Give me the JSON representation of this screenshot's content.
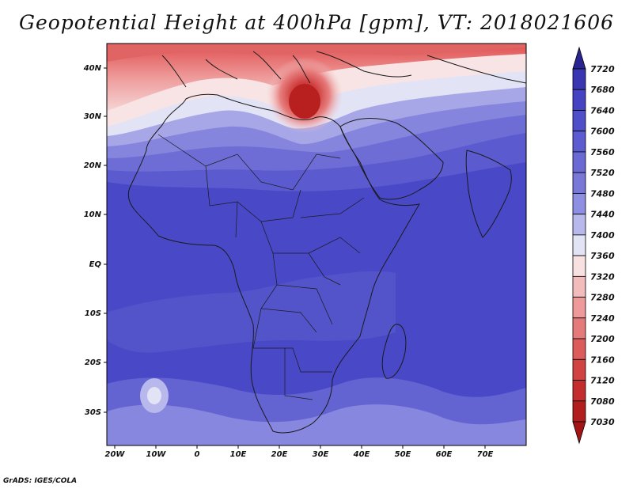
{
  "title": "Geopotential Height at 400hPa [gpm], VT: 2018021606",
  "credit": "GrADS: IGES/COLA",
  "map": {
    "lat_labels": [
      "40N",
      "30N",
      "20N",
      "10N",
      "EQ",
      "10S",
      "20S",
      "30S"
    ],
    "lon_labels": [
      "20W",
      "10W",
      "0",
      "10E",
      "20E",
      "30E",
      "40E",
      "50E",
      "60E",
      "70E"
    ]
  },
  "colorbar": {
    "labels": [
      "7720",
      "7680",
      "7640",
      "7600",
      "7560",
      "7520",
      "7480",
      "7440",
      "7400",
      "7360",
      "7320",
      "7280",
      "7240",
      "7200",
      "7160",
      "7120",
      "7080",
      "7030"
    ],
    "colors": [
      "#3a36b2",
      "#4543c2",
      "#504fca",
      "#5c5bcf",
      "#6b6ad4",
      "#7978d9",
      "#8e8ee2",
      "#b8b8ec",
      "#e3e3f6",
      "#f8e1e1",
      "#f3bcbc",
      "#ee9a9a",
      "#e57a7a",
      "#dc5c5c",
      "#d14242",
      "#c32d2d",
      "#b21e1e"
    ],
    "max_color": "#2a2490",
    "min_color": "#a31515"
  }
}
